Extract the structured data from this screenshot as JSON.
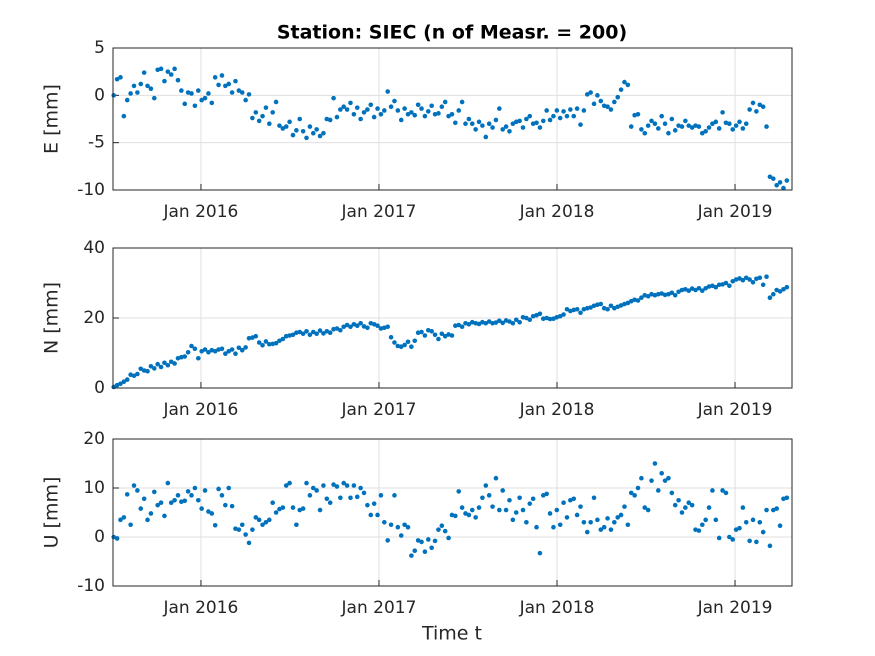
{
  "chart_data": {
    "type": "scatter",
    "title": "Station: SIEC (n of Measr. = 200)",
    "xlabel": "Time t",
    "grid": true,
    "xlim": [
      2015.506,
      2019.32
    ],
    "xticks": [
      {
        "value": 2016,
        "label": "Jan 2016"
      },
      {
        "value": 2017,
        "label": "Jan 2017"
      },
      {
        "value": 2018,
        "label": "Jan 2018"
      },
      {
        "value": 2019,
        "label": "Jan 2019"
      }
    ],
    "x": [
      2015.51,
      2015.529,
      2015.548,
      2015.567,
      2015.586,
      2015.605,
      2015.624,
      2015.643,
      2015.662,
      2015.681,
      2015.7,
      2015.719,
      2015.738,
      2015.757,
      2015.776,
      2015.795,
      2015.814,
      2015.833,
      2015.852,
      2015.871,
      2015.89,
      2015.909,
      2015.928,
      2015.947,
      2015.966,
      2015.985,
      2016.004,
      2016.023,
      2016.042,
      2016.061,
      2016.08,
      2016.099,
      2016.118,
      2016.137,
      2016.156,
      2016.175,
      2016.194,
      2016.213,
      2016.232,
      2016.251,
      2016.27,
      2016.289,
      2016.308,
      2016.327,
      2016.346,
      2016.365,
      2016.384,
      2016.403,
      2016.422,
      2016.441,
      2016.46,
      2016.479,
      2016.498,
      2016.517,
      2016.536,
      2016.555,
      2016.574,
      2016.593,
      2016.612,
      2016.631,
      2016.65,
      2016.669,
      2016.688,
      2016.707,
      2016.726,
      2016.745,
      2016.764,
      2016.783,
      2016.802,
      2016.821,
      2016.84,
      2016.859,
      2016.878,
      2016.897,
      2016.916,
      2016.935,
      2016.954,
      2016.973,
      2016.992,
      2017.011,
      2017.03,
      2017.049,
      2017.068,
      2017.087,
      2017.106,
      2017.125,
      2017.144,
      2017.163,
      2017.182,
      2017.201,
      2017.22,
      2017.239,
      2017.258,
      2017.277,
      2017.296,
      2017.315,
      2017.334,
      2017.353,
      2017.372,
      2017.391,
      2017.41,
      2017.429,
      2017.448,
      2017.467,
      2017.486,
      2017.505,
      2017.524,
      2017.543,
      2017.562,
      2017.581,
      2017.6,
      2017.619,
      2017.638,
      2017.657,
      2017.676,
      2017.695,
      2017.714,
      2017.733,
      2017.752,
      2017.771,
      2017.79,
      2017.809,
      2017.828,
      2017.847,
      2017.866,
      2017.885,
      2017.904,
      2017.923,
      2017.942,
      2017.961,
      2017.98,
      2017.999,
      2018.018,
      2018.037,
      2018.056,
      2018.075,
      2018.094,
      2018.113,
      2018.132,
      2018.151,
      2018.17,
      2018.189,
      2018.208,
      2018.227,
      2018.246,
      2018.265,
      2018.284,
      2018.303,
      2018.322,
      2018.341,
      2018.36,
      2018.379,
      2018.398,
      2018.417,
      2018.436,
      2018.455,
      2018.474,
      2018.493,
      2018.512,
      2018.531,
      2018.55,
      2018.569,
      2018.588,
      2018.607,
      2018.626,
      2018.645,
      2018.664,
      2018.683,
      2018.702,
      2018.721,
      2018.74,
      2018.759,
      2018.778,
      2018.797,
      2018.816,
      2018.835,
      2018.854,
      2018.873,
      2018.892,
      2018.911,
      2018.93,
      2018.949,
      2018.968,
      2018.987,
      2019.006,
      2019.025,
      2019.044,
      2019.063,
      2019.082,
      2019.101,
      2019.12,
      2019.139,
      2019.158,
      2019.177,
      2019.196,
      2019.215,
      2019.234,
      2019.253,
      2019.272,
      2019.291
    ],
    "panels": [
      {
        "ylabel": "E [mm]",
        "ylim": [
          -10,
          5
        ],
        "yticks": [
          -10,
          -5,
          0,
          5
        ],
        "color": "#0072bd",
        "values": [
          0,
          1.7,
          1.9,
          -2.2,
          -0.5,
          0.2,
          1.0,
          0.3,
          1.2,
          2.4,
          1.0,
          0.7,
          -0.3,
          2.7,
          2.8,
          1.5,
          2.5,
          2.2,
          2.8,
          1.6,
          0.5,
          -0.9,
          0.3,
          0.2,
          -1.1,
          0.5,
          -0.5,
          -0.3,
          0.2,
          -0.8,
          1.9,
          1.1,
          2.1,
          1.0,
          1.2,
          0.3,
          1.5,
          0.5,
          0.3,
          -0.5,
          0.1,
          -2.4,
          -1.8,
          -2.7,
          -2.2,
          -1.3,
          -3.0,
          -1.8,
          -0.7,
          -3.2,
          -3.5,
          -3.3,
          -2.8,
          -4.2,
          -3.7,
          -2.5,
          -3.8,
          -4.5,
          -3.3,
          -4.0,
          -3.6,
          -4.3,
          -4.0,
          -2.5,
          -2.6,
          -0.3,
          -2.3,
          -1.5,
          -1.2,
          -1.5,
          -0.8,
          -2.0,
          -1.3,
          -2.5,
          -1.8,
          -1.5,
          -1.0,
          -2.3,
          -1.4,
          -2.0,
          -1.6,
          0.4,
          -1.2,
          -0.6,
          -1.6,
          -2.6,
          -1.4,
          -2.0,
          -1.8,
          -2.1,
          -1.0,
          -1.4,
          -2.2,
          -1.7,
          -1.1,
          -2.0,
          -1.9,
          -1.2,
          -0.7,
          -2.2,
          -2.0,
          -2.9,
          -1.6,
          -0.7,
          -3.0,
          -2.5,
          -3.0,
          -3.6,
          -2.8,
          -3.2,
          -4.4,
          -3.0,
          -3.4,
          -2.6,
          -1.4,
          -3.6,
          -3.3,
          -3.8,
          -3.0,
          -2.8,
          -2.7,
          -3.4,
          -2.5,
          -2.2,
          -3.0,
          -2.9,
          -3.4,
          -2.7,
          -1.6,
          -2.6,
          -2.2,
          -1.6,
          -2.4,
          -1.7,
          -2.2,
          -1.5,
          -2.2,
          -1.4,
          -3.1,
          -1.6,
          0.1,
          0.3,
          -0.9,
          0,
          -0.6,
          -1.1,
          -1.2,
          -1.5,
          -0.7,
          -0.2,
          0.6,
          1.4,
          1.1,
          -3.3,
          -2.1,
          -2.0,
          -3.6,
          -4.0,
          -3.2,
          -2.7,
          -3.0,
          -3.5,
          -2.2,
          -3.0,
          -4.0,
          -2.5,
          -3.7,
          -3.2,
          -3.3,
          -2.7,
          -3.2,
          -3.4,
          -3.2,
          -3.3,
          -4.0,
          -3.8,
          -3.4,
          -3.0,
          -2.8,
          -3.5,
          -1.8,
          -2.9,
          -3.0,
          -3.6,
          -3.2,
          -2.8,
          -3.5,
          -3.0,
          -1.5,
          -0.8,
          -1.7,
          -1.0,
          -1.2,
          -3.3,
          -8.6,
          -8.8,
          -9.5,
          -9.2,
          -9.8,
          -9.0
        ]
      },
      {
        "ylabel": "N [mm]",
        "ylim": [
          0,
          40
        ],
        "yticks": [
          0,
          20,
          40
        ],
        "color": "#0072bd",
        "values": [
          0.3,
          0.8,
          1.2,
          1.8,
          2.4,
          3.8,
          3.5,
          4.0,
          5.5,
          5.0,
          4.8,
          6.2,
          5.6,
          6.8,
          6.0,
          7.2,
          6.5,
          7.5,
          7.0,
          8.5,
          8.8,
          9.0,
          10.2,
          12.0,
          11.2,
          8.5,
          10.5,
          11.0,
          10.2,
          10.8,
          10.5,
          11.0,
          11.2,
          9.8,
          10.5,
          11.0,
          9.8,
          11.5,
          10.8,
          11.6,
          14.2,
          14.4,
          14.8,
          13.0,
          12.2,
          13.3,
          12.5,
          12.6,
          12.8,
          13.5,
          14.0,
          14.8,
          15.0,
          15.2,
          15.8,
          16.0,
          15.5,
          16.2,
          15.2,
          16.0,
          15.5,
          16.4,
          15.6,
          16.2,
          15.8,
          16.8,
          17.0,
          16.5,
          17.5,
          18.0,
          17.5,
          18.2,
          17.8,
          18.5,
          17.6,
          17.2,
          18.5,
          18.2,
          17.8,
          17.0,
          17.2,
          17.5,
          14.5,
          13.0,
          12.0,
          11.8,
          12.3,
          13.2,
          11.8,
          13.5,
          15.8,
          16.0,
          15.0,
          16.5,
          16.2,
          15.2,
          14.0,
          15.5,
          14.8,
          15.3,
          15.0,
          17.8,
          18.0,
          17.5,
          18.5,
          18.2,
          18.8,
          18.5,
          18.3,
          18.8,
          18.5,
          19.0,
          18.5,
          18.7,
          19.2,
          18.6,
          19.3,
          19.0,
          18.5,
          19.5,
          18.8,
          20.2,
          20.0,
          19.5,
          20.5,
          20.8,
          21.2,
          19.8,
          20.0,
          19.7,
          19.8,
          20.2,
          20.5,
          21.0,
          22.5,
          22.0,
          22.3,
          22.5,
          21.5,
          22.5,
          22.8,
          23.0,
          23.5,
          23.8,
          24.0,
          22.8,
          22.5,
          23.5,
          22.8,
          23.2,
          23.6,
          24.0,
          24.3,
          24.8,
          25.2,
          25.0,
          25.8,
          26.5,
          26.2,
          26.8,
          26.5,
          26.8,
          27.0,
          26.6,
          26.8,
          27.2,
          26.5,
          27.5,
          28.0,
          28.2,
          27.8,
          28.4,
          28.0,
          28.5,
          27.8,
          28.5,
          29.0,
          29.2,
          28.8,
          29.5,
          29.6,
          30.0,
          29.2,
          30.5,
          31.0,
          31.3,
          30.8,
          31.5,
          31.0,
          30.2,
          31.2,
          31.5,
          29.5,
          31.8,
          25.8,
          26.8,
          28.0,
          27.6,
          28.2,
          28.8
        ]
      },
      {
        "ylabel": "U [mm]",
        "ylim": [
          -10,
          20
        ],
        "yticks": [
          -10,
          0,
          10,
          20
        ],
        "color": "#0072bd",
        "values": [
          0,
          -0.3,
          3.5,
          4.0,
          8.7,
          2.5,
          10.5,
          9.5,
          5.8,
          7.8,
          3.5,
          4.8,
          9.2,
          6.5,
          7.0,
          4.3,
          11.0,
          7.0,
          7.5,
          8.5,
          7.2,
          7.4,
          9.3,
          8.5,
          10.0,
          7.5,
          5.8,
          9.5,
          5.2,
          4.8,
          2.4,
          9.8,
          8.5,
          6.5,
          10.0,
          6.3,
          1.7,
          1.5,
          2.5,
          0.5,
          -1.2,
          1.5,
          4.0,
          3.5,
          2.5,
          3.0,
          3.5,
          7.0,
          5.0,
          5.7,
          6.0,
          10.5,
          11.0,
          6.0,
          2.5,
          5.5,
          5.8,
          11.0,
          8.5,
          10.0,
          9.5,
          5.5,
          10.5,
          7.8,
          7.0,
          10.7,
          10.3,
          8.0,
          11.0,
          10.5,
          8.0,
          10.5,
          8.2,
          10.0,
          9.0,
          6.5,
          4.5,
          6.8,
          4.5,
          8.5,
          3.0,
          -0.7,
          2.5,
          8.5,
          2.0,
          0.3,
          2.5,
          2.0,
          -3.8,
          -2.8,
          -0.7,
          -1.0,
          -3.0,
          -0.5,
          -2.2,
          -0.8,
          1.5,
          2.3,
          1.2,
          -0.2,
          4.5,
          4.3,
          9.3,
          6.0,
          4.8,
          4.5,
          5.5,
          4.0,
          6.0,
          8.0,
          10.5,
          8.5,
          6.2,
          12.0,
          5.5,
          9.5,
          5.5,
          7.5,
          3.5,
          5.0,
          8.0,
          5.5,
          3.0,
          6.8,
          7.8,
          2.0,
          -3.3,
          8.5,
          8.8,
          4.8,
          2.0,
          5.5,
          2.5,
          7.0,
          4.0,
          7.5,
          7.8,
          4.5,
          6.2,
          3.0,
          1.0,
          3.0,
          8.0,
          3.5,
          1.5,
          2.0,
          3.8,
          1.5,
          3.0,
          4.0,
          4.5,
          6.2,
          2.5,
          9.0,
          8.5,
          10.0,
          12.0,
          6.0,
          5.5,
          11.5,
          15.0,
          9.5,
          13.0,
          11.5,
          12.0,
          9.0,
          6.5,
          7.5,
          5.0,
          6.0,
          7.0,
          6.5,
          1.5,
          1.3,
          2.5,
          3.5,
          6.0,
          9.5,
          3.5,
          -0.2,
          9.5,
          9.0,
          0,
          -0.5,
          1.5,
          1.8,
          6.0,
          3.0,
          -0.8,
          3.5,
          -1.0,
          3.0,
          1.0,
          5.5,
          -1.8,
          5.5,
          5.8,
          2.3,
          7.8,
          8.0
        ]
      }
    ]
  }
}
